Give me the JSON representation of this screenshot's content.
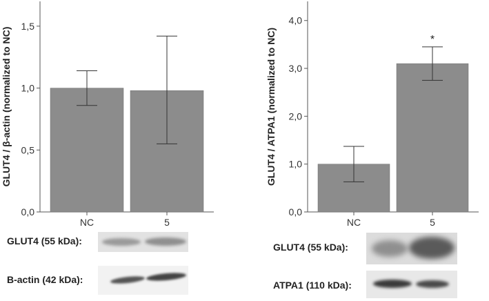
{
  "colors": {
    "bar": "#8c8c8c",
    "bar_edge": "#6f6f6f",
    "axis": "#555555"
  },
  "chart_data": [
    {
      "type": "bar",
      "categories": [
        "NC",
        "5"
      ],
      "values": [
        1.0,
        0.98
      ],
      "error_low": [
        0.86,
        0.55
      ],
      "error_high": [
        1.14,
        1.42
      ],
      "annotations": [
        "",
        ""
      ],
      "xlabel": "",
      "ylabel": "GLUT4 / β-actin (normalized to NC)",
      "ylim": [
        0,
        1.7
      ],
      "yticks": [
        0.0,
        0.5,
        1.0,
        1.5
      ],
      "ytick_labels": [
        "0,0",
        "0,5",
        "1,0",
        "1,5"
      ],
      "grid": false
    },
    {
      "type": "bar",
      "categories": [
        "NC",
        "5"
      ],
      "values": [
        1.0,
        3.1
      ],
      "error_low": [
        0.63,
        2.75
      ],
      "error_high": [
        1.37,
        3.45
      ],
      "annotations": [
        "",
        "*"
      ],
      "xlabel": "",
      "ylabel": "GLUT4 / ATPA1 (normalized to NC)",
      "ylim": [
        0,
        4.4
      ],
      "yticks": [
        0.0,
        1.0,
        2.0,
        3.0,
        4.0
      ],
      "ytick_labels": [
        "0,0",
        "1,0",
        "2,0",
        "3,0",
        "4,0"
      ],
      "grid": false
    }
  ],
  "blots": {
    "left": [
      {
        "label": "GLUT4 (55 kDa):"
      },
      {
        "label": "B-actin (42 kDa):"
      }
    ],
    "right": [
      {
        "label": "GLUT4 (55 kDa):"
      },
      {
        "label": "ATPA1 (110 kDa):"
      }
    ]
  }
}
